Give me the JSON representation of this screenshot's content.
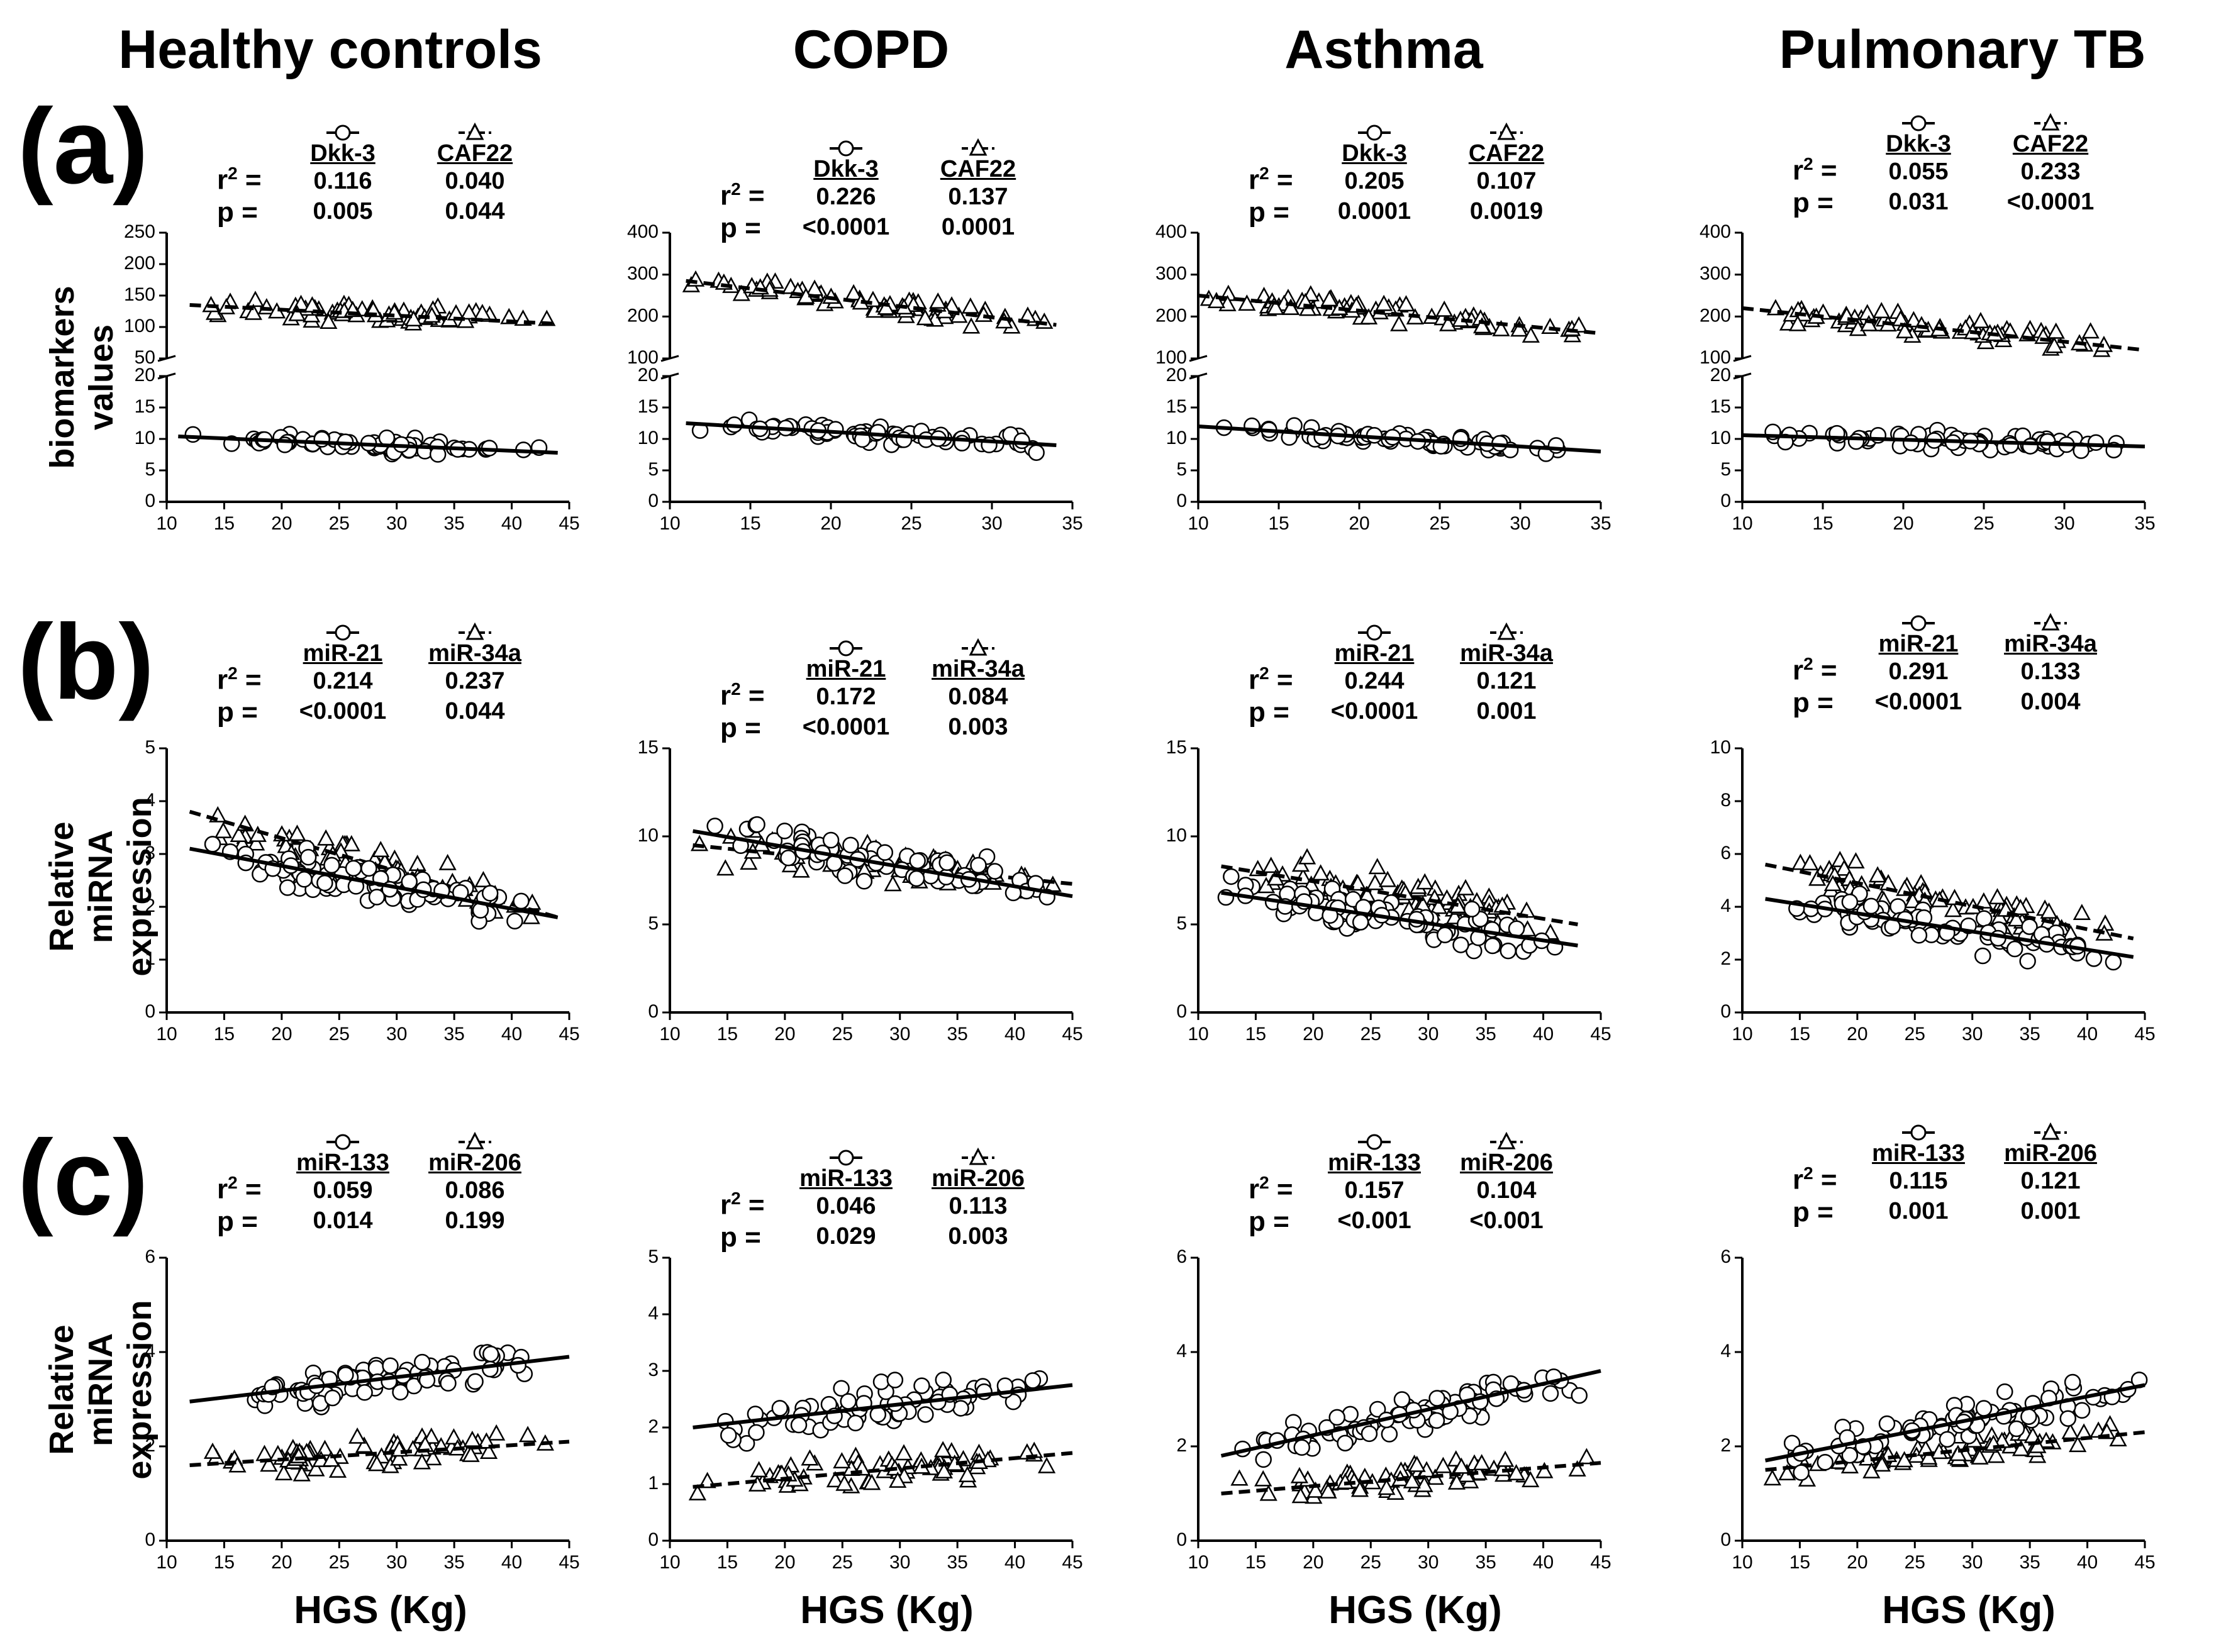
{
  "figure": {
    "columns": [
      "Healthy controls",
      "COPD",
      "Asthma",
      "Pulmonary TB"
    ],
    "row_labels": [
      "(a)",
      "(b)",
      "(c)"
    ],
    "ylabel_a": [
      "biomarkers",
      "values"
    ],
    "ylabel_bc": [
      "Relative miRNA",
      "expression"
    ],
    "xlabel": "HGS (Kg)",
    "r2_label": "r",
    "r2_sup": "2",
    "eq": " =",
    "p_label": "p ="
  },
  "chart_data": [
    {
      "type": "scatter",
      "row": "a",
      "group": "Healthy controls",
      "xlim": [
        10,
        45
      ],
      "xticks": [
        "10",
        "15",
        "20",
        "25",
        "30",
        "35",
        "40",
        "45"
      ],
      "upper": {
        "ylim": [
          50,
          250
        ],
        "yticks": [
          "50",
          "100",
          "150",
          "200",
          "250"
        ]
      },
      "lower": {
        "ylim": [
          0,
          20
        ],
        "yticks": [
          "0",
          "5",
          "10",
          "15",
          "20"
        ]
      },
      "series": [
        {
          "name": "Dkk-3",
          "marker": "circle",
          "line": "solid",
          "panel": "lower",
          "r2": "0.116",
          "p": "0.005",
          "fit": [
            11,
            44
          ],
          "fit_y": [
            10.4,
            7.8
          ]
        },
        {
          "name": "CAF22",
          "marker": "triangle",
          "line": "dashed",
          "panel": "upper",
          "r2": "0.040",
          "p": "0.044",
          "fit": [
            12,
            44
          ],
          "fit_y": [
            135,
            105
          ]
        }
      ]
    },
    {
      "type": "scatter",
      "row": "a",
      "group": "COPD",
      "xlim": [
        10,
        35
      ],
      "xticks": [
        "10",
        "15",
        "20",
        "25",
        "30",
        "35"
      ],
      "upper": {
        "ylim": [
          100,
          400
        ],
        "yticks": [
          "100",
          "200",
          "300",
          "400"
        ]
      },
      "lower": {
        "ylim": [
          0,
          20
        ],
        "yticks": [
          "0",
          "5",
          "10",
          "15",
          "20"
        ]
      },
      "series": [
        {
          "name": "Dkk-3",
          "marker": "circle",
          "line": "solid",
          "panel": "lower",
          "r2": "0.226",
          "p": "<0.0001",
          "fit": [
            11,
            34
          ],
          "fit_y": [
            12.5,
            9.0
          ]
        },
        {
          "name": "CAF22",
          "marker": "triangle",
          "line": "dashed",
          "panel": "upper",
          "r2": "0.137",
          "p": "0.0001",
          "fit": [
            11,
            34
          ],
          "fit_y": [
            285,
            180
          ]
        }
      ]
    },
    {
      "type": "scatter",
      "row": "a",
      "group": "Asthma",
      "xlim": [
        10,
        35
      ],
      "xticks": [
        "10",
        "15",
        "20",
        "25",
        "30",
        "35"
      ],
      "upper": {
        "ylim": [
          100,
          400
        ],
        "yticks": [
          "100",
          "200",
          "300",
          "400"
        ]
      },
      "lower": {
        "ylim": [
          0,
          20
        ],
        "yticks": [
          "0",
          "5",
          "10",
          "15",
          "20"
        ]
      },
      "series": [
        {
          "name": "Dkk-3",
          "marker": "circle",
          "line": "solid",
          "panel": "lower",
          "r2": "0.205",
          "p": "0.0001",
          "fit": [
            10,
            35
          ],
          "fit_y": [
            12.0,
            8.0
          ]
        },
        {
          "name": "CAF22",
          "marker": "triangle",
          "line": "dashed",
          "panel": "upper",
          "r2": "0.107",
          "p": "0.0019",
          "fit": [
            10,
            35
          ],
          "fit_y": [
            250,
            160
          ]
        }
      ]
    },
    {
      "type": "scatter",
      "row": "a",
      "group": "Pulmonary TB",
      "xlim": [
        10,
        35
      ],
      "xticks": [
        "10",
        "15",
        "20",
        "25",
        "30",
        "35"
      ],
      "upper": {
        "ylim": [
          100,
          400
        ],
        "yticks": [
          "100",
          "200",
          "300",
          "400"
        ]
      },
      "lower": {
        "ylim": [
          0,
          20
        ],
        "yticks": [
          "0",
          "5",
          "10",
          "15",
          "20"
        ]
      },
      "series": [
        {
          "name": "Dkk-3",
          "marker": "circle",
          "line": "solid",
          "panel": "lower",
          "r2": "0.055",
          "p": "0.031",
          "fit": [
            10,
            35
          ],
          "fit_y": [
            10.6,
            8.8
          ]
        },
        {
          "name": "CAF22",
          "marker": "triangle",
          "line": "dashed",
          "panel": "upper",
          "r2": "0.233",
          "p": "<0.0001",
          "fit": [
            10,
            35
          ],
          "fit_y": [
            220,
            120
          ]
        }
      ]
    },
    {
      "type": "scatter",
      "row": "b",
      "group": "Healthy controls",
      "xlim": [
        10,
        45
      ],
      "ylim": [
        0,
        5
      ],
      "xticks": [
        "10",
        "15",
        "20",
        "25",
        "30",
        "35",
        "40",
        "45"
      ],
      "yticks": [
        "0",
        "1",
        "2",
        "3",
        "4",
        "5"
      ],
      "series": [
        {
          "name": "miR-21",
          "marker": "circle",
          "line": "solid",
          "r2": "0.214",
          "p": "<0.0001",
          "fit": [
            12,
            44
          ],
          "fit_y": [
            3.1,
            1.8
          ]
        },
        {
          "name": "miR-34a",
          "marker": "triangle",
          "line": "dashed",
          "r2": "0.237",
          "p": "0.044",
          "fit": [
            12,
            44
          ],
          "fit_y": [
            3.8,
            1.8
          ]
        }
      ]
    },
    {
      "type": "scatter",
      "row": "b",
      "group": "COPD",
      "xlim": [
        10,
        45
      ],
      "ylim": [
        0,
        15
      ],
      "xticks": [
        "10",
        "15",
        "20",
        "25",
        "30",
        "35",
        "40",
        "45"
      ],
      "yticks": [
        "0",
        "5",
        "10",
        "15"
      ],
      "series": [
        {
          "name": "miR-21",
          "marker": "circle",
          "line": "solid",
          "r2": "0.172",
          "p": "<0.0001",
          "fit": [
            12,
            45
          ],
          "fit_y": [
            10.3,
            6.6
          ]
        },
        {
          "name": "miR-34a",
          "marker": "triangle",
          "line": "dashed",
          "r2": "0.084",
          "p": "0.003",
          "fit": [
            12,
            45
          ],
          "fit_y": [
            9.5,
            7.3
          ]
        }
      ]
    },
    {
      "type": "scatter",
      "row": "b",
      "group": "Asthma",
      "xlim": [
        10,
        45
      ],
      "ylim": [
        0,
        15
      ],
      "xticks": [
        "10",
        "15",
        "20",
        "25",
        "30",
        "35",
        "40",
        "45"
      ],
      "yticks": [
        "0",
        "5",
        "10",
        "15"
      ],
      "series": [
        {
          "name": "miR-21",
          "marker": "circle",
          "line": "solid",
          "r2": "0.244",
          "p": "<0.0001",
          "fit": [
            12,
            43
          ],
          "fit_y": [
            6.8,
            3.8
          ]
        },
        {
          "name": "miR-34a",
          "marker": "triangle",
          "line": "dashed",
          "r2": "0.121",
          "p": "0.001",
          "fit": [
            12,
            43
          ],
          "fit_y": [
            8.3,
            5.0
          ]
        }
      ]
    },
    {
      "type": "scatter",
      "row": "b",
      "group": "Pulmonary TB",
      "xlim": [
        10,
        45
      ],
      "ylim": [
        0,
        10
      ],
      "xticks": [
        "10",
        "15",
        "20",
        "25",
        "30",
        "35",
        "40",
        "45"
      ],
      "yticks": [
        "0",
        "2",
        "4",
        "6",
        "8",
        "10"
      ],
      "series": [
        {
          "name": "miR-21",
          "marker": "circle",
          "line": "solid",
          "r2": "0.291",
          "p": "<0.0001",
          "fit": [
            12,
            44
          ],
          "fit_y": [
            4.3,
            2.1
          ]
        },
        {
          "name": "miR-34a",
          "marker": "triangle",
          "line": "dashed",
          "r2": "0.133",
          "p": "0.004",
          "fit": [
            12,
            44
          ],
          "fit_y": [
            5.6,
            2.8
          ]
        }
      ]
    },
    {
      "type": "scatter",
      "row": "c",
      "group": "Healthy controls",
      "xlim": [
        10,
        45
      ],
      "ylim": [
        0,
        6
      ],
      "xticks": [
        "10",
        "15",
        "20",
        "25",
        "30",
        "35",
        "40",
        "45"
      ],
      "yticks": [
        "0",
        "2",
        "4",
        "6"
      ],
      "series": [
        {
          "name": "miR-133",
          "marker": "circle",
          "line": "solid",
          "r2": "0.059",
          "p": "0.014",
          "fit": [
            12,
            45
          ],
          "fit_y": [
            2.95,
            3.9
          ]
        },
        {
          "name": "miR-206",
          "marker": "triangle",
          "line": "dashed",
          "r2": "0.086",
          "p": "0.199",
          "fit": [
            12,
            45
          ],
          "fit_y": [
            1.6,
            2.1
          ]
        }
      ]
    },
    {
      "type": "scatter",
      "row": "c",
      "group": "COPD",
      "xlim": [
        10,
        45
      ],
      "ylim": [
        0,
        5
      ],
      "xticks": [
        "10",
        "15",
        "20",
        "25",
        "30",
        "35",
        "40",
        "45"
      ],
      "yticks": [
        "0",
        "1",
        "2",
        "3",
        "4",
        "5"
      ],
      "series": [
        {
          "name": "miR-133",
          "marker": "circle",
          "line": "solid",
          "r2": "0.046",
          "p": "0.029",
          "fit": [
            12,
            45
          ],
          "fit_y": [
            2.0,
            2.75
          ]
        },
        {
          "name": "miR-206",
          "marker": "triangle",
          "line": "dashed",
          "r2": "0.113",
          "p": "0.003",
          "fit": [
            12,
            45
          ],
          "fit_y": [
            0.95,
            1.55
          ]
        }
      ]
    },
    {
      "type": "scatter",
      "row": "c",
      "group": "Asthma",
      "xlim": [
        10,
        45
      ],
      "ylim": [
        0,
        6
      ],
      "xticks": [
        "10",
        "15",
        "20",
        "25",
        "30",
        "35",
        "40",
        "45"
      ],
      "yticks": [
        "0",
        "2",
        "4",
        "6"
      ],
      "series": [
        {
          "name": "miR-133",
          "marker": "circle",
          "line": "solid",
          "r2": "0.157",
          "p": "<0.001",
          "fit": [
            12,
            45
          ],
          "fit_y": [
            1.8,
            3.6
          ]
        },
        {
          "name": "miR-206",
          "marker": "triangle",
          "line": "dashed",
          "r2": "0.104",
          "p": "<0.001",
          "fit": [
            12,
            45
          ],
          "fit_y": [
            1.0,
            1.65
          ]
        }
      ]
    },
    {
      "type": "scatter",
      "row": "c",
      "group": "Pulmonary TB",
      "xlim": [
        10,
        45
      ],
      "ylim": [
        0,
        6
      ],
      "xticks": [
        "10",
        "15",
        "20",
        "25",
        "30",
        "35",
        "40",
        "45"
      ],
      "yticks": [
        "0",
        "2",
        "4",
        "6"
      ],
      "series": [
        {
          "name": "miR-133",
          "marker": "circle",
          "line": "solid",
          "r2": "0.115",
          "p": "0.001",
          "fit": [
            12,
            45
          ],
          "fit_y": [
            1.7,
            3.3
          ]
        },
        {
          "name": "miR-206",
          "marker": "triangle",
          "line": "dashed",
          "r2": "0.121",
          "p": "0.001",
          "fit": [
            12,
            45
          ],
          "fit_y": [
            1.5,
            2.3
          ]
        }
      ]
    }
  ]
}
